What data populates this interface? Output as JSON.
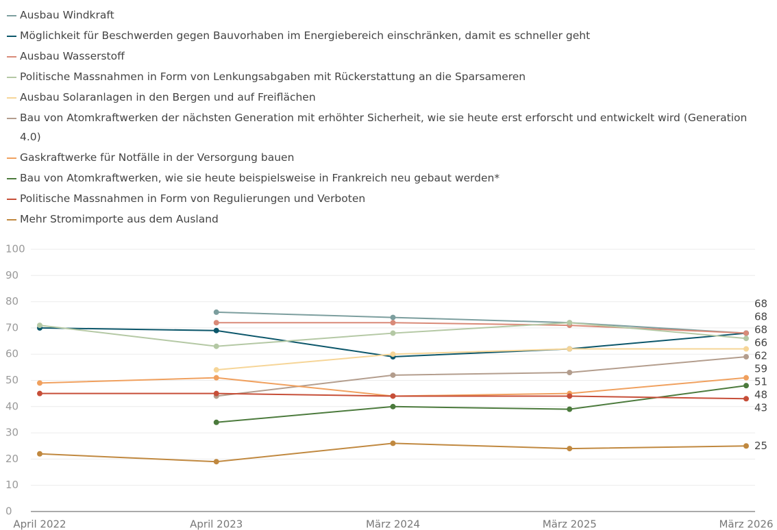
{
  "chart_data": {
    "type": "line",
    "categories": [
      "April 2022",
      "April 2023",
      "März 2024",
      "März 2025",
      "März 2026"
    ],
    "series": [
      {
        "name": "Ausbau Windkraft",
        "color": "#7c9e9e",
        "values": [
          null,
          76,
          74,
          72,
          68
        ]
      },
      {
        "name": "Möglichkeit für Beschwerden gegen Bauvorhaben im Energiebereich einschränken, damit es schneller geht",
        "color": "#0b566a",
        "values": [
          70,
          69,
          59,
          62,
          68
        ]
      },
      {
        "name": "Ausbau Wasserstoff",
        "color": "#d98a78",
        "values": [
          null,
          72,
          72,
          71,
          68
        ]
      },
      {
        "name": "Politische Massnahmen in Form von Lenkungsabgaben mit Rückerstattung an die Sparsameren",
        "color": "#b4c8a4",
        "values": [
          71,
          63,
          68,
          72,
          66
        ]
      },
      {
        "name": "Ausbau Solaranlagen in den Bergen und auf Freiflächen",
        "color": "#f6d597",
        "values": [
          null,
          54,
          60,
          62,
          62
        ]
      },
      {
        "name": "Bau von Atomkraftwerken der nächsten Generation mit erhöhter Sicherheit, wie sie heute erst erforscht und entwickelt wird (Generation 4.0)",
        "color": "#b39d8d",
        "values": [
          null,
          44,
          52,
          53,
          59
        ]
      },
      {
        "name": "Gaskraftwerke für Notfälle in der Versorgung bauen",
        "color": "#f0a05e",
        "values": [
          49,
          51,
          44,
          45,
          51
        ]
      },
      {
        "name": "Bau von Atomkraftwerken, wie sie heute beispielsweise in Frankreich neu gebaut werden*",
        "color": "#4b7a3c",
        "values": [
          null,
          34,
          40,
          39,
          48
        ]
      },
      {
        "name": "Politische Massnahmen in Form von Regulierungen und Verboten",
        "color": "#c64e38",
        "values": [
          45,
          45,
          44,
          44,
          43
        ]
      },
      {
        "name": "Mehr Stromimporte aus dem Ausland",
        "color": "#c0883f",
        "values": [
          22,
          19,
          26,
          24,
          25
        ]
      }
    ],
    "ylim": [
      0,
      100
    ],
    "yticks": [
      0,
      10,
      20,
      30,
      40,
      50,
      60,
      70,
      80,
      90,
      100
    ],
    "grid": true
  }
}
